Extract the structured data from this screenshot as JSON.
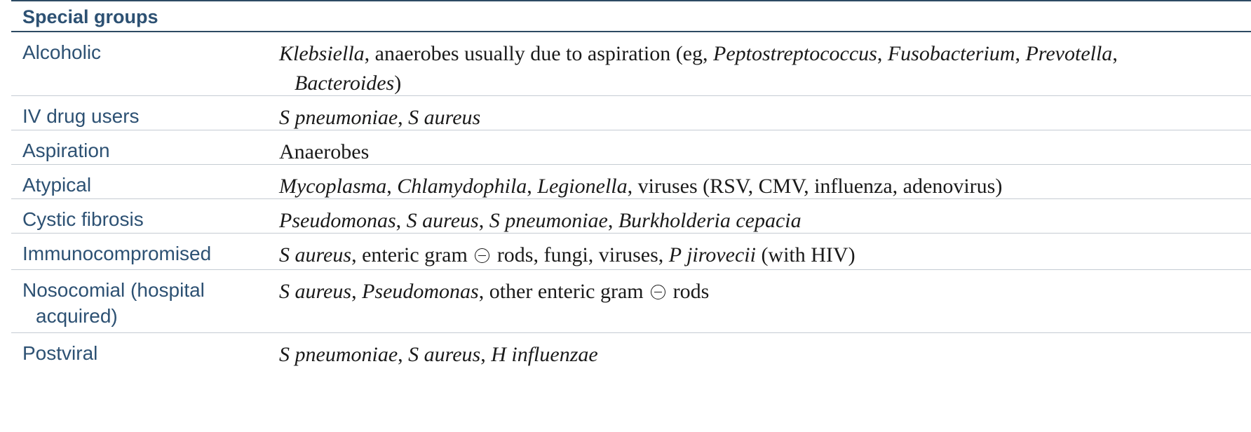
{
  "table": {
    "header": "Special groups",
    "rows": [
      {
        "label": "Alcoholic",
        "t": [
          "Klebsiella",
          ", anaerobes usually due to aspiration (eg, ",
          "Peptostreptococcus",
          ", ",
          "Fusobacterium",
          ", ",
          "Prevotella",
          ","
        ],
        "t2": [
          "Bacteroides",
          ")"
        ]
      },
      {
        "label": "IV drug users",
        "t": [
          "S pneumoniae",
          ", ",
          "S aureus"
        ]
      },
      {
        "label": "Aspiration",
        "t": [
          "Anaerobes"
        ]
      },
      {
        "label": "Atypical",
        "t": [
          "Mycoplasma",
          ", ",
          "Chlamydophila",
          ", ",
          "Legionella",
          ", viruses (RSV, CMV, influenza, adenovirus)"
        ]
      },
      {
        "label": "Cystic fibrosis",
        "t": [
          "Pseudomonas",
          ", ",
          "S aureus",
          ", ",
          "S pneumoniae",
          ", ",
          "Burkholderia cepacia"
        ]
      },
      {
        "label": "Immunocompromised",
        "t": [
          "S aureus",
          ", enteric gram ",
          " rods, fungi, viruses, ",
          "P jirovecii",
          " (with HIV)"
        ]
      },
      {
        "label": "Nosocomial (hospital",
        "label2": "acquired)",
        "t": [
          "S aureus",
          ", ",
          "Pseudomonas",
          ", other enteric gram ",
          " rods"
        ]
      },
      {
        "label": "Postviral",
        "t": [
          "S pneumoniae",
          ", ",
          "S aureus",
          ", ",
          "H influenzae"
        ]
      }
    ]
  }
}
